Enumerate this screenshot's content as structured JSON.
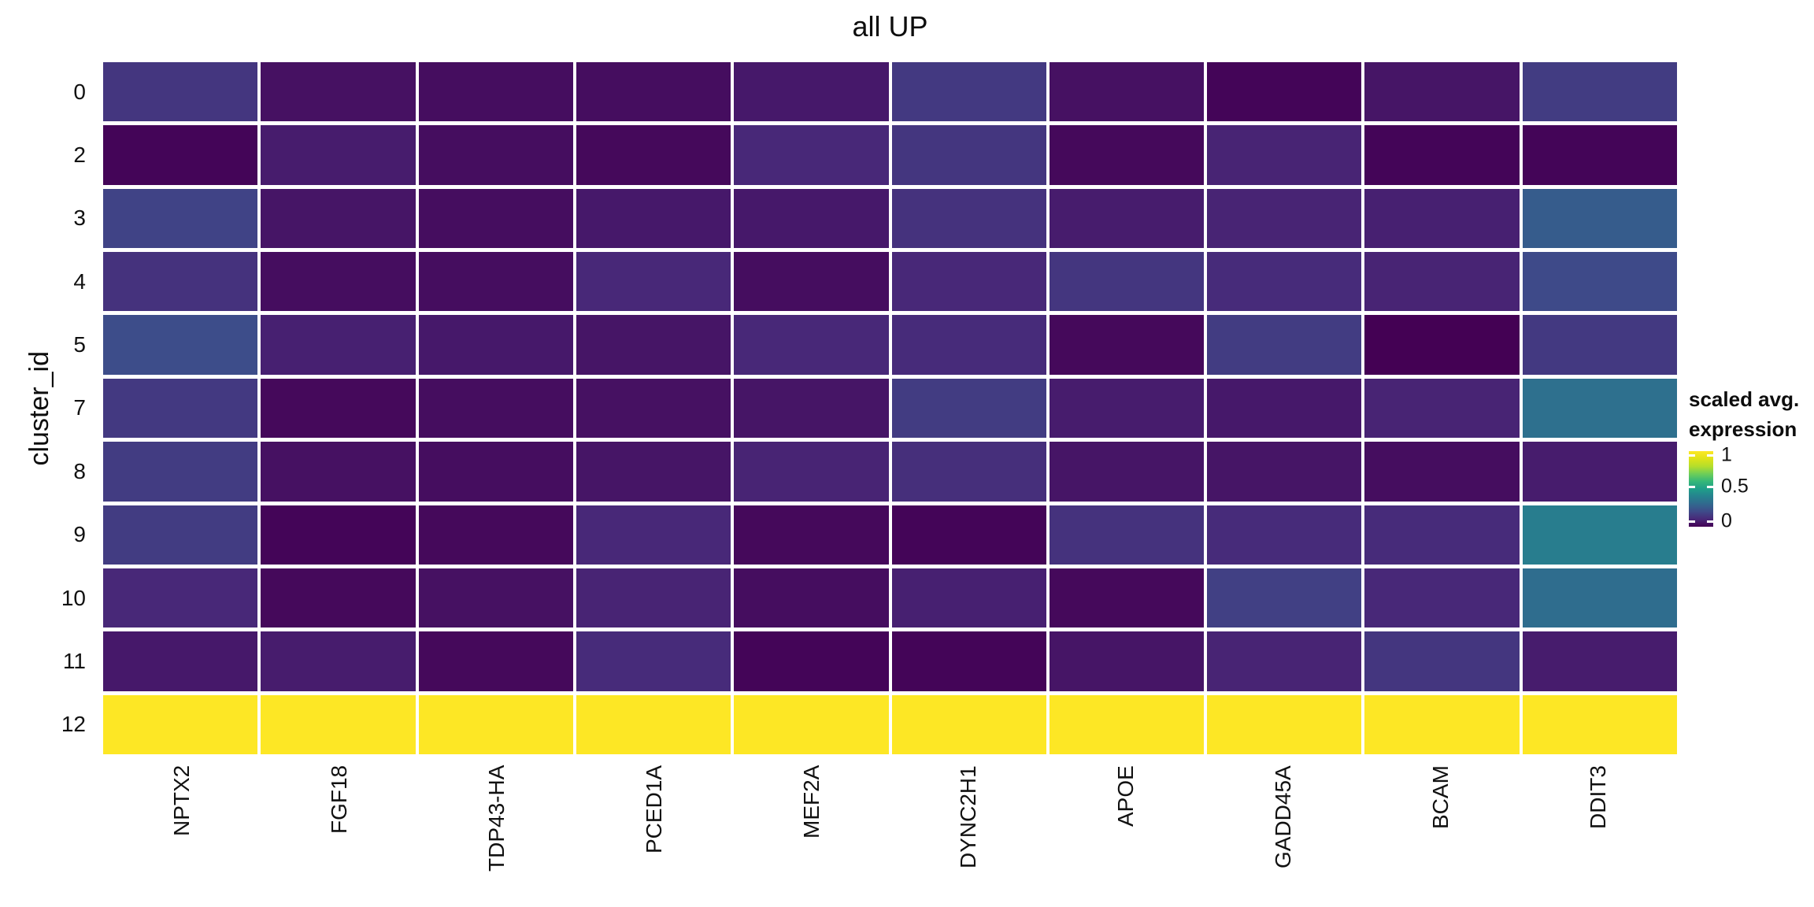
{
  "chart_data": {
    "type": "heatmap",
    "title": "all UP",
    "xlabel": "",
    "ylabel": "cluster_id",
    "rows": [
      "0",
      "2",
      "3",
      "4",
      "5",
      "7",
      "8",
      "9",
      "10",
      "11",
      "12"
    ],
    "columns": [
      "NPTX2",
      "FGF18",
      "TDP43-HA",
      "PCED1A",
      "MEF2A",
      "DYNC2H1",
      "APOE",
      "GADD45A",
      "BCAM",
      "DDIT3"
    ],
    "values": [
      [
        0.14,
        0.04,
        0.03,
        0.03,
        0.06,
        0.15,
        0.04,
        0.01,
        0.05,
        0.16
      ],
      [
        0.01,
        0.07,
        0.03,
        0.02,
        0.1,
        0.14,
        0.02,
        0.09,
        0.01,
        0.01
      ],
      [
        0.18,
        0.05,
        0.03,
        0.06,
        0.06,
        0.13,
        0.07,
        0.09,
        0.08,
        0.26
      ],
      [
        0.13,
        0.03,
        0.03,
        0.1,
        0.03,
        0.1,
        0.14,
        0.11,
        0.09,
        0.2
      ],
      [
        0.21,
        0.08,
        0.06,
        0.05,
        0.1,
        0.11,
        0.02,
        0.16,
        0.0,
        0.15
      ],
      [
        0.15,
        0.02,
        0.03,
        0.04,
        0.05,
        0.16,
        0.07,
        0.06,
        0.09,
        0.33
      ],
      [
        0.16,
        0.04,
        0.03,
        0.05,
        0.09,
        0.12,
        0.05,
        0.05,
        0.03,
        0.07
      ],
      [
        0.16,
        0.01,
        0.02,
        0.1,
        0.02,
        0.01,
        0.13,
        0.11,
        0.11,
        0.38
      ],
      [
        0.1,
        0.02,
        0.04,
        0.09,
        0.03,
        0.08,
        0.02,
        0.17,
        0.1,
        0.32
      ],
      [
        0.06,
        0.07,
        0.02,
        0.11,
        0.01,
        0.01,
        0.05,
        0.09,
        0.14,
        0.07
      ],
      [
        1.0,
        1.0,
        1.0,
        1.0,
        1.0,
        1.0,
        1.0,
        1.0,
        1.0,
        1.0
      ]
    ],
    "value_range": [
      0,
      1
    ],
    "colormap": "viridis",
    "colormap_stops": [
      [
        0.0,
        68,
        1,
        84
      ],
      [
        0.1,
        72,
        40,
        120
      ],
      [
        0.2,
        62,
        74,
        137
      ],
      [
        0.3,
        49,
        104,
        142
      ],
      [
        0.4,
        38,
        130,
        142
      ],
      [
        0.5,
        31,
        158,
        137
      ],
      [
        0.6,
        53,
        183,
        121
      ],
      [
        0.7,
        110,
        206,
        88
      ],
      [
        0.8,
        181,
        222,
        43
      ],
      [
        0.9,
        223,
        227,
        24
      ],
      [
        1.0,
        253,
        231,
        37
      ]
    ],
    "grid": false,
    "legend_position": "right",
    "legend": {
      "title_lines": [
        "scaled avg.",
        "expression"
      ],
      "ticks": [
        {
          "label": "1",
          "pos": 0.055
        },
        {
          "label": "0.5",
          "pos": 0.47
        },
        {
          "label": "0",
          "pos": 0.925
        }
      ]
    }
  }
}
